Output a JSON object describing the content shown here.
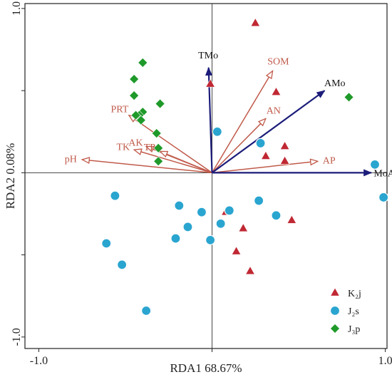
{
  "chart_data": {
    "type": "scatter",
    "subtype": "rda_biplot",
    "xlabel": "RDA1 68.67%",
    "ylabel": "RDA2 0.08%",
    "xlim": [
      -1.08,
      1.01
    ],
    "ylim": [
      -1.07,
      1.03
    ],
    "x_ticks": [
      {
        "value": -1.0,
        "label": "-1.0"
      },
      {
        "value": 0.0,
        "label": ""
      },
      {
        "value": 1.0,
        "label": "1.0"
      }
    ],
    "y_ticks": [
      {
        "value": 1.0,
        "label": "1.0"
      },
      {
        "value": 0.5,
        "label": ""
      },
      {
        "value": 0.0,
        "label": ""
      },
      {
        "value": -0.5,
        "label": ""
      },
      {
        "value": -1.0,
        "label": "-1.0"
      }
    ],
    "zero_lines": true,
    "grid": false,
    "legend_position": "bottom-right",
    "colors": {
      "env_arrow": "#c05a4a",
      "response_arrow": "#1c1c7a",
      "K2j": "#c02833",
      "J2s": "#2aa5d0",
      "J3p": "#1f9a2a"
    },
    "response_vectors": [
      {
        "label": "TMo",
        "x": -0.02,
        "y": 0.64
      },
      {
        "label": "AMo",
        "x": 0.65,
        "y": 0.5
      },
      {
        "label": "MoA",
        "x": 0.92,
        "y": 0.0
      }
    ],
    "environment_vectors": [
      {
        "label": "SOM",
        "x": 0.35,
        "y": 0.62
      },
      {
        "label": "AN",
        "x": 0.31,
        "y": 0.33
      },
      {
        "label": "AP",
        "x": 0.61,
        "y": 0.07
      },
      {
        "label": "PRT",
        "x": -0.48,
        "y": 0.35
      },
      {
        "label": "AK",
        "x": -0.38,
        "y": 0.16
      },
      {
        "label": "TP",
        "x": -0.3,
        "y": 0.13
      },
      {
        "label": "TK",
        "x": -0.45,
        "y": 0.14
      },
      {
        "label": "pH",
        "x": -0.75,
        "y": 0.08
      }
    ],
    "series": [
      {
        "name": "K₂j",
        "marker": "triangle",
        "points": [
          [
            0.25,
            0.91
          ],
          [
            -0.01,
            0.54
          ],
          [
            0.37,
            0.49
          ],
          [
            0.42,
            0.16
          ],
          [
            0.31,
            0.1
          ],
          [
            0.42,
            0.07
          ],
          [
            0.08,
            -0.24
          ],
          [
            0.18,
            -0.34
          ],
          [
            0.46,
            -0.29
          ],
          [
            0.14,
            -0.48
          ],
          [
            0.22,
            -0.6
          ]
        ]
      },
      {
        "name": "J₂s",
        "marker": "circle",
        "points": [
          [
            0.03,
            0.25
          ],
          [
            0.28,
            0.18
          ],
          [
            0.94,
            0.05
          ],
          [
            0.99,
            -0.15
          ],
          [
            -0.56,
            -0.14
          ],
          [
            -0.19,
            -0.2
          ],
          [
            -0.06,
            -0.24
          ],
          [
            0.1,
            -0.23
          ],
          [
            0.27,
            -0.17
          ],
          [
            0.37,
            -0.26
          ],
          [
            0.05,
            -0.31
          ],
          [
            -0.14,
            -0.33
          ],
          [
            -0.21,
            -0.4
          ],
          [
            -0.01,
            -0.41
          ],
          [
            -0.61,
            -0.43
          ],
          [
            -0.52,
            -0.56
          ],
          [
            -0.38,
            -0.84
          ]
        ]
      },
      {
        "name": "J₃p",
        "marker": "diamond",
        "points": [
          [
            -0.4,
            0.67
          ],
          [
            -0.45,
            0.57
          ],
          [
            -0.45,
            0.47
          ],
          [
            -0.3,
            0.42
          ],
          [
            -0.4,
            0.37
          ],
          [
            -0.42,
            0.35
          ],
          [
            -0.44,
            0.35
          ],
          [
            -0.41,
            0.32
          ],
          [
            -0.32,
            0.24
          ],
          [
            -0.31,
            0.15
          ],
          [
            -0.31,
            0.07
          ],
          [
            0.79,
            0.46
          ]
        ]
      }
    ]
  }
}
